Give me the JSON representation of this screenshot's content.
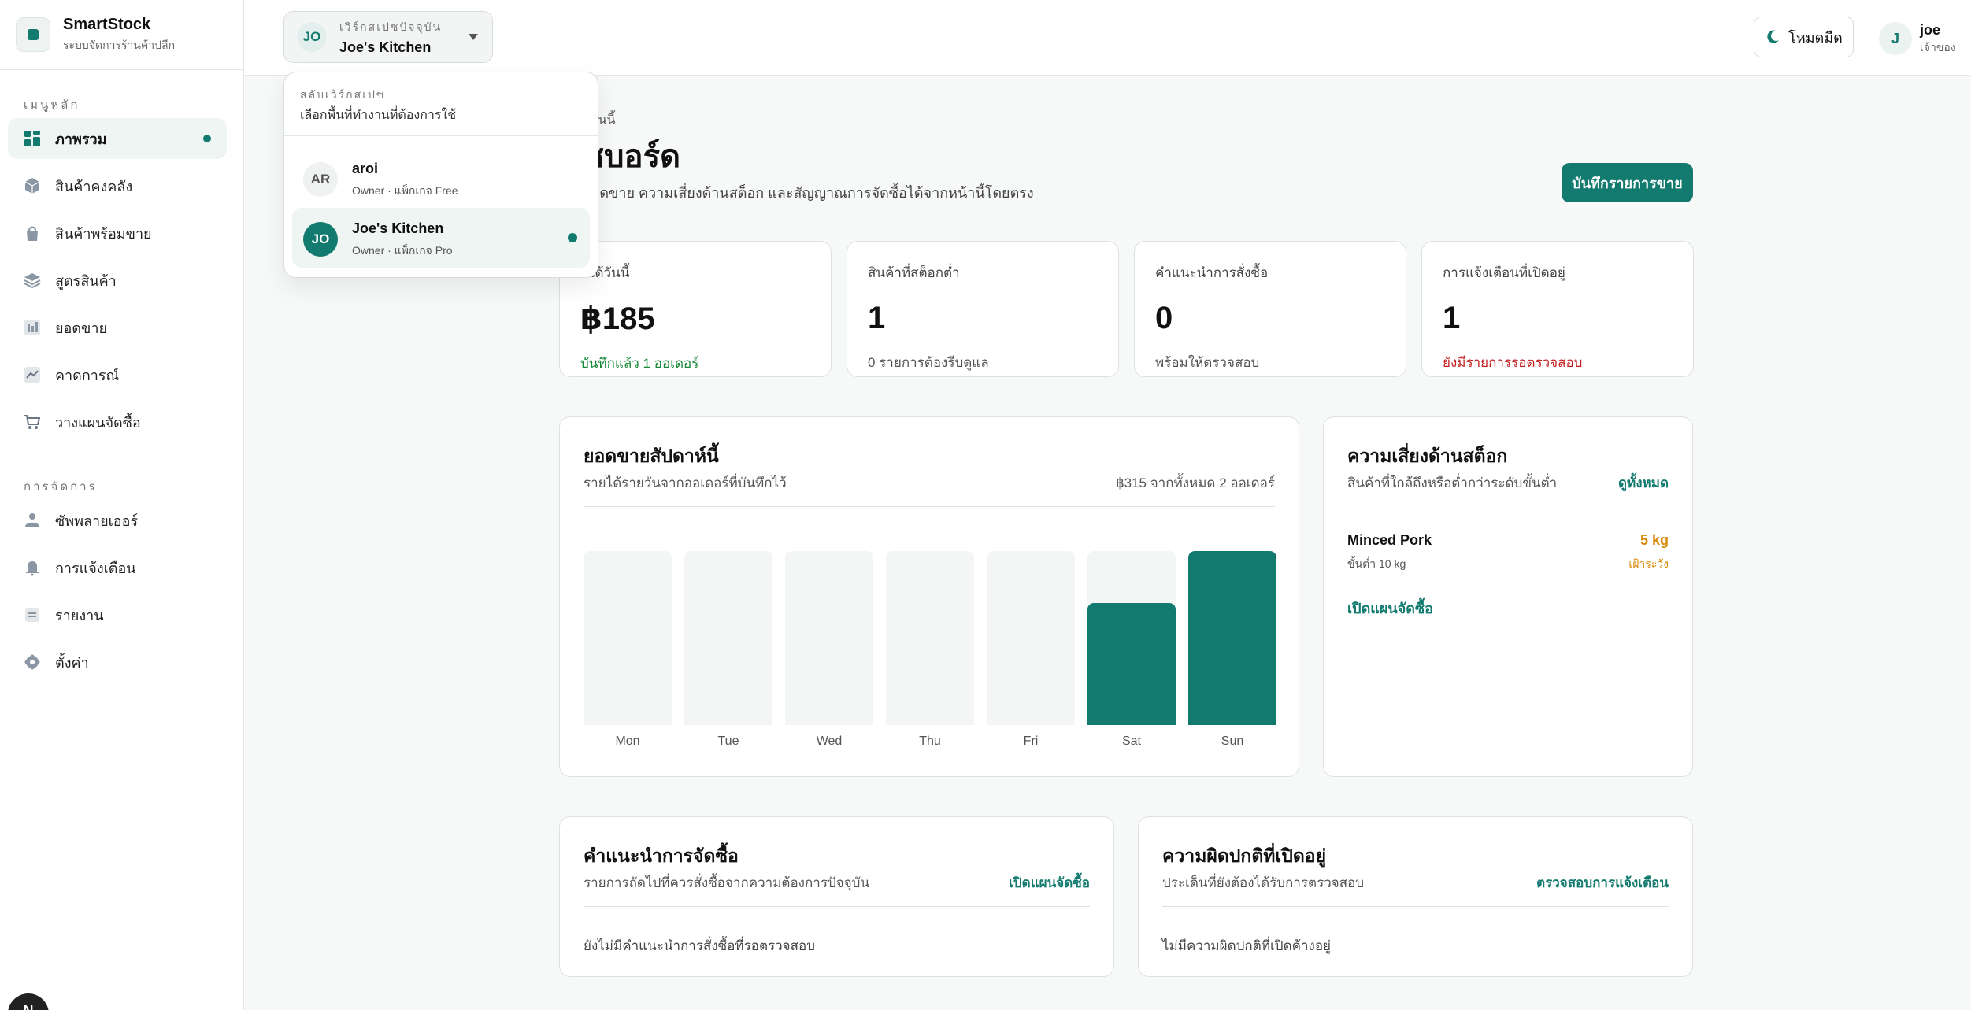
{
  "brand": {
    "name": "SmartStock",
    "subtitle": "ระบบจัดการร้านค้าปลีก"
  },
  "sidebar": {
    "main_section": "เมนูหลัก",
    "main_items": [
      {
        "label": "ภาพรวม",
        "icon": "dashboard-icon",
        "active": true
      },
      {
        "label": "สินค้าคงคลัง",
        "icon": "box-icon"
      },
      {
        "label": "สินค้าพร้อมขาย",
        "icon": "bag-icon"
      },
      {
        "label": "สูตรสินค้า",
        "icon": "layers-icon"
      },
      {
        "label": "ยอดขาย",
        "icon": "bar-chart-icon"
      },
      {
        "label": "คาดการณ์",
        "icon": "trend-icon"
      },
      {
        "label": "วางแผนจัดซื้อ",
        "icon": "cart-icon"
      }
    ],
    "manage_section": "การจัดการ",
    "manage_items": [
      {
        "label": "ซัพพลายเออร์",
        "icon": "supplier-icon"
      },
      {
        "label": "การแจ้งเตือน",
        "icon": "bell-icon"
      },
      {
        "label": "รายงาน",
        "icon": "report-icon"
      },
      {
        "label": "ตั้งค่า",
        "icon": "gear-icon"
      }
    ],
    "bottom_avatar": "N"
  },
  "topbar": {
    "workspace_label": "เวิร์กสเปซปัจจุบัน",
    "workspace_initials": "JO",
    "workspace_name": "Joe's Kitchen",
    "dark_mode_label": "โหมดมืด",
    "user_initial": "J",
    "user_name": "joe",
    "user_role": "เจ้าของ"
  },
  "workspace_menu": {
    "label": "สลับเวิร์กสเปซ",
    "subtitle": "เลือกพื้นที่ทำงานที่ต้องการใช้",
    "items": [
      {
        "initials": "AR",
        "name": "aroi",
        "role": "Owner · แพ็กเกจ Free",
        "selected": false
      },
      {
        "initials": "JO",
        "name": "Joe's Kitchen",
        "role": "Owner · แพ็กเกจ Pro",
        "selected": true
      }
    ]
  },
  "header": {
    "eyebrow": "มวันนี้",
    "title": "ชบอร์ด",
    "subtitle": "ยอดขาย ความเสี่ยงด้านสต็อก และสัญญาณการจัดซื้อได้จากหน้านี้โดยตรง",
    "primary_button": "บันทึกรายการขาย"
  },
  "stats": [
    {
      "label": "ยได้วันนี้",
      "value": "฿185",
      "note": "บันทึกแล้ว 1 ออเดอร์",
      "tone": "green"
    },
    {
      "label": "สินค้าที่สต็อกต่ำ",
      "value": "1",
      "note": "0 รายการต้องรีบดูแล",
      "tone": "neutral"
    },
    {
      "label": "คำแนะนำการสั่งซื้อ",
      "value": "0",
      "note": "พร้อมให้ตรวจสอบ",
      "tone": "neutral"
    },
    {
      "label": "การแจ้งเตือนที่เปิดอยู่",
      "value": "1",
      "note": "ยังมีรายการรอตรวจสอบ",
      "tone": "red"
    }
  ],
  "weekly_sales": {
    "title": "ยอดขายสัปดาห์นี้",
    "subtitle": "รายได้รายวันจากออเดอร์ที่บันทึกไว้",
    "summary": "฿315 จากทั้งหมด 2 ออเดอร์"
  },
  "chart_data": {
    "type": "bar",
    "categories": [
      "Mon",
      "Tue",
      "Wed",
      "Thu",
      "Fri",
      "Sat",
      "Sun"
    ],
    "values": [
      0,
      0,
      0,
      0,
      0,
      130,
      185
    ],
    "ylim": [
      0,
      185
    ],
    "grid": false,
    "color": "#127a6e"
  },
  "stock_risk": {
    "title": "ความเสี่ยงด้านสต็อก",
    "subtitle": "สินค้าที่ใกล้ถึงหรือต่ำกว่าระดับขั้นต่ำ",
    "link": "ดูทั้งหมด",
    "item_name": "Minced Pork",
    "item_min": "ขั้นต่ำ 10 kg",
    "item_qty": "5 kg",
    "item_state": "เฝ้าระวัง",
    "action": "เปิดแผนจัดซื้อ"
  },
  "purchase_reco": {
    "title": "คำแนะนำการจัดซื้อ",
    "subtitle": "รายการถัดไปที่ควรสั่งซื้อจากความต้องการปัจจุบัน",
    "link": "เปิดแผนจัดซื้อ",
    "empty": "ยังไม่มีคำแนะนำการสั่งซื้อที่รอตรวจสอบ"
  },
  "anomalies": {
    "title": "ความผิดปกติที่เปิดอยู่",
    "subtitle": "ประเด็นที่ยังต้องได้รับการตรวจสอบ",
    "link": "ตรวจสอบการแจ้งเตือน",
    "empty": "ไม่มีความผิดปกติที่เปิดค้างอยู่"
  }
}
